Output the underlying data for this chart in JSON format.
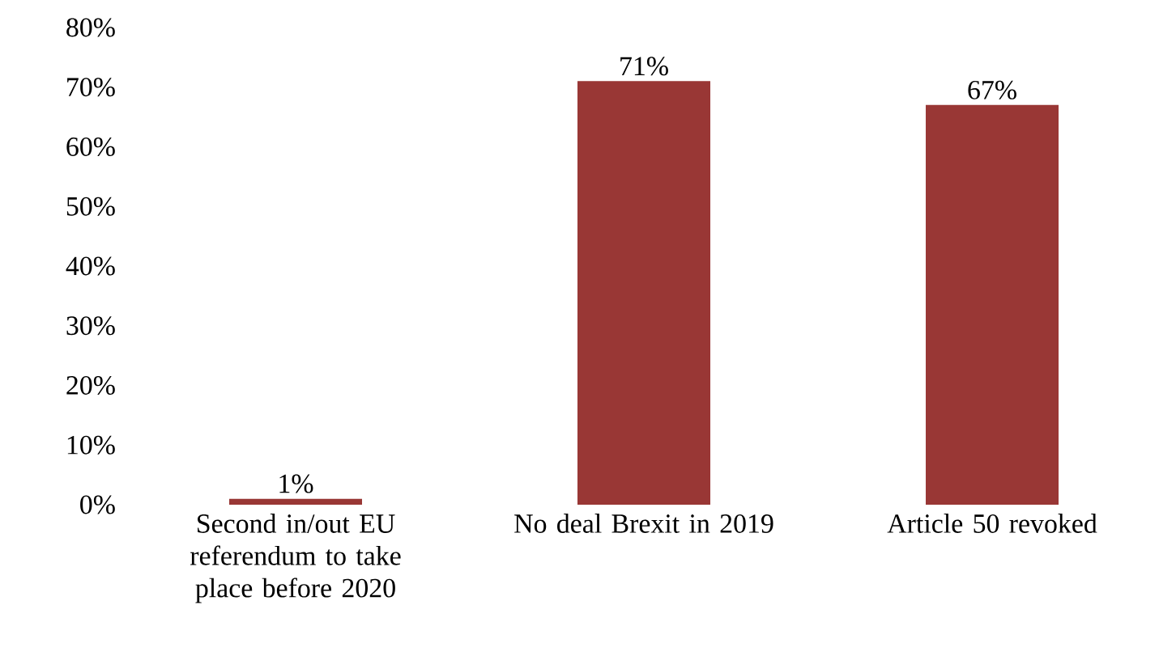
{
  "chart_data": {
    "type": "bar",
    "categories": [
      "Second in/out EU referendum to take place before 2020",
      "No deal Brexit in 2019",
      "Article 50 revoked"
    ],
    "values": [
      1,
      71,
      67
    ],
    "color": "#993735",
    "value_labels": [
      "1%",
      "71%",
      "67%"
    ],
    "ylim": [
      0,
      80
    ],
    "yticks": [
      {
        "value": 0,
        "label": "0%"
      },
      {
        "value": 10,
        "label": "10%"
      },
      {
        "value": 20,
        "label": "20%"
      },
      {
        "value": 30,
        "label": "30%"
      },
      {
        "value": 40,
        "label": "40%"
      },
      {
        "value": 50,
        "label": "50%"
      },
      {
        "value": 60,
        "label": "60%"
      },
      {
        "value": 70,
        "label": "70%"
      },
      {
        "value": 80,
        "label": "80%"
      }
    ],
    "data_labels": false
  }
}
